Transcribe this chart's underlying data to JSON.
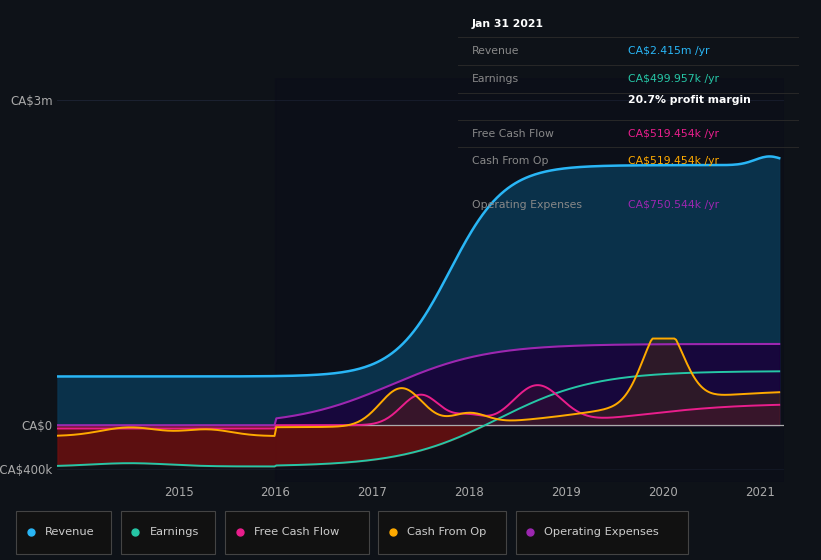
{
  "background_color": "#0e1218",
  "plot_bg_color": "#0e1218",
  "ylim": [
    -500000,
    3200000
  ],
  "series": {
    "revenue": {
      "color": "#29b6f6",
      "fill_color": "#0a3550",
      "label": "Revenue"
    },
    "earnings": {
      "color": "#26c6a6",
      "fill_color": "#5a1010",
      "label": "Earnings"
    },
    "free_cash_flow": {
      "color": "#e91e8c",
      "fill_color": "#5a0030",
      "label": "Free Cash Flow"
    },
    "cash_from_op": {
      "color": "#ffaa00",
      "fill_color": "#3a2000",
      "label": "Cash From Op"
    },
    "operating_expenses": {
      "color": "#9c27b0",
      "fill_color": "#1a003a",
      "label": "Operating Expenses"
    }
  },
  "info_box": {
    "title": "Jan 31 2021",
    "revenue_label": "Revenue",
    "revenue_value": "CA$2.415m /yr",
    "revenue_color": "#29b6f6",
    "earnings_label": "Earnings",
    "earnings_value": "CA$499.957k /yr",
    "earnings_color": "#26c6a6",
    "profit_margin": "20.7% profit margin",
    "fcf_label": "Free Cash Flow",
    "fcf_value": "CA$519.454k /yr",
    "fcf_color": "#e91e8c",
    "cashop_label": "Cash From Op",
    "cashop_value": "CA$519.454k /yr",
    "cashop_color": "#ffaa00",
    "opex_label": "Operating Expenses",
    "opex_value": "CA$750.544k /yr",
    "opex_color": "#9c27b0"
  }
}
